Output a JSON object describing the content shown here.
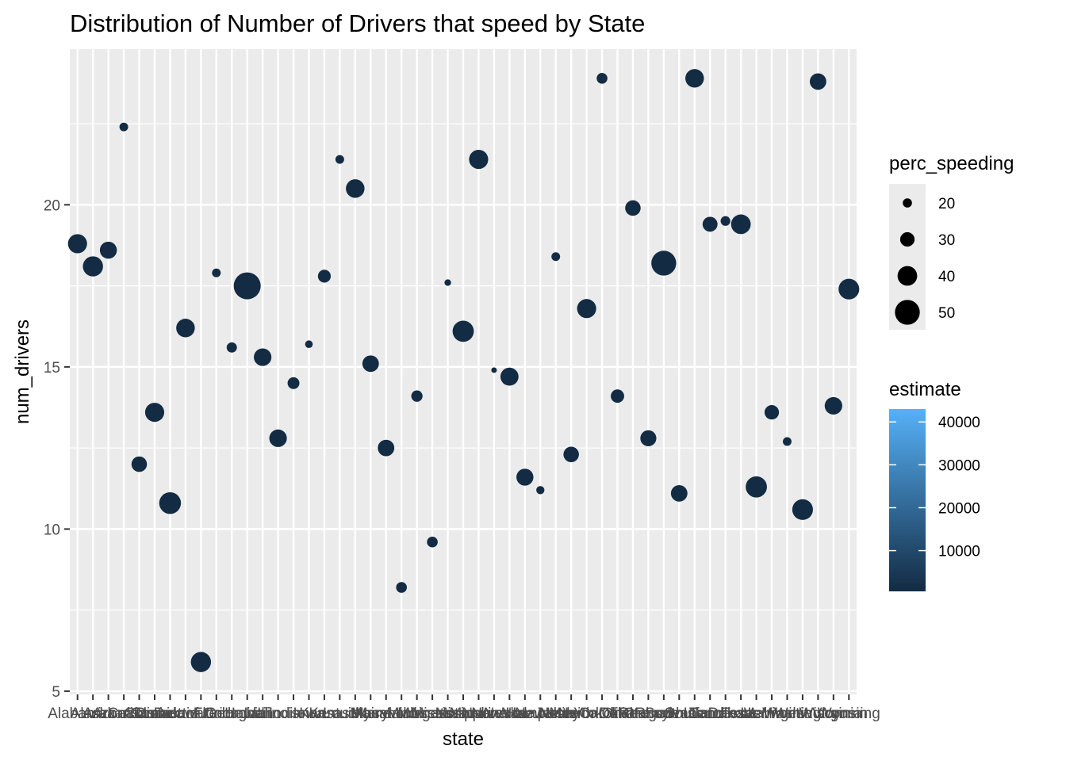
{
  "chart_data": {
    "type": "scatter",
    "title": "Distribution of Number of Drivers that speed by State",
    "xlabel": "state",
    "ylabel": "num_drivers",
    "ylim": [
      4.9,
      24.8
    ],
    "yticks": [
      5,
      10,
      15,
      20
    ],
    "grid": true,
    "legend_position": "right",
    "colors": {
      "panel": "#ebebeb",
      "grid": "#ffffff",
      "point": "#132b43",
      "gradient_low": "#132b43",
      "gradient_high": "#56b1f7"
    },
    "categories": [
      "Alabama",
      "Alaska",
      "Arizona",
      "Arkansas",
      "California",
      "Colorado",
      "Connecticut",
      "Delaware",
      "District of Columbia",
      "Florida",
      "Georgia",
      "Hawaii",
      "Idaho",
      "Illinois",
      "Indiana",
      "Iowa",
      "Kansas",
      "Kentucky",
      "Louisiana",
      "Maine",
      "Maryland",
      "Massachusetts",
      "Michigan",
      "Minnesota",
      "Mississippi",
      "Missouri",
      "Montana",
      "Nebraska",
      "Nevada",
      "New Hampshire",
      "New Jersey",
      "New Mexico",
      "New York",
      "North Carolina",
      "North Dakota",
      "Ohio",
      "Oklahoma",
      "Oregon",
      "Pennsylvania",
      "Rhode Island",
      "South Carolina",
      "South Dakota",
      "Tennessee",
      "Texas",
      "Utah",
      "Vermont",
      "Virginia",
      "Washington",
      "West Virginia",
      "Wisconsin",
      "Wyoming"
    ],
    "x_tick_labels": [
      "Alabama",
      "Alaska",
      "Arizona",
      "Arkansas",
      "California",
      "Colorado",
      "Connecticut",
      "Delaware",
      "District of Columbia",
      "Florida",
      "Georgia",
      "Hawaii",
      "Idaho",
      "Illinois",
      "Indiana",
      "Iowa",
      "Kansas",
      "Kentucky",
      "Louisiana",
      "Maine",
      "Maryland",
      "Massachusetts",
      "Michigan",
      "Minnesota",
      "Mississippi",
      "Missouri",
      "Montana",
      "Nebraska",
      "Nevada",
      "New Hampshire",
      "New Jersey",
      "New Mexico",
      "New York",
      "North Carolina",
      "North Dakota",
      "Ohio",
      "Oklahoma",
      "Oregon",
      "Pennsylvania",
      "Rhode Island",
      "South Carolina",
      "South Dakota",
      "Tennessee",
      "Texas",
      "Utah",
      "Vermont",
      "Virginia",
      "Washington",
      "West Virginia",
      "Wisconsin",
      "Wyoming"
    ],
    "num_drivers": [
      18.8,
      18.1,
      18.6,
      22.4,
      12.0,
      13.6,
      10.8,
      16.2,
      5.9,
      17.9,
      15.6,
      17.5,
      15.3,
      12.8,
      14.5,
      15.7,
      17.8,
      21.4,
      20.5,
      15.1,
      12.5,
      8.2,
      14.1,
      9.6,
      17.6,
      16.1,
      21.4,
      14.9,
      14.7,
      11.6,
      11.2,
      18.4,
      12.3,
      16.8,
      23.9,
      14.1,
      19.9,
      12.8,
      18.2,
      11.1,
      23.9,
      19.4,
      19.5,
      19.4,
      11.3,
      13.6,
      12.7,
      10.6,
      23.8,
      13.8,
      17.4
    ],
    "perc_speeding": [
      39,
      41,
      35,
      19,
      32,
      39,
      44,
      38,
      41,
      19,
      22,
      54,
      36,
      36,
      25,
      17,
      27,
      19,
      38,
      34,
      34,
      23,
      24,
      23,
      15,
      43,
      39,
      13,
      37,
      35,
      18,
      19,
      32,
      39,
      23,
      28,
      32,
      33,
      50,
      34,
      38,
      31,
      21,
      40,
      43,
      30,
      19,
      42,
      34,
      36,
      42
    ],
    "estimate_legend": {
      "title": "estimate",
      "breaks": [
        "10000",
        "20000",
        "30000",
        "40000"
      ],
      "break_values": [
        10000,
        20000,
        30000,
        40000
      ],
      "range": [
        500,
        43000
      ]
    },
    "size_legend": {
      "title": "perc_speeding",
      "labels": [
        "20",
        "30",
        "40",
        "50"
      ],
      "values": [
        20,
        30,
        40,
        50
      ]
    }
  }
}
